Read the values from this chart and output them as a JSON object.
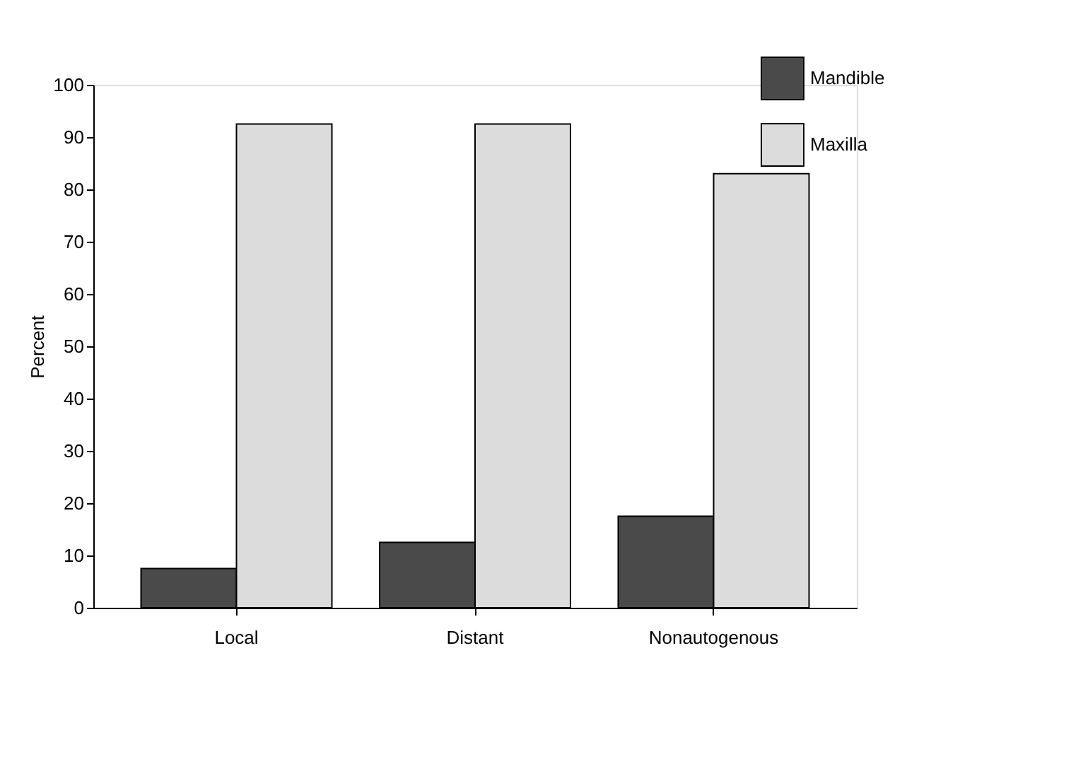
{
  "chart_data": {
    "type": "bar",
    "ylabel": "Percent",
    "categories": [
      "Local",
      "Distant",
      "Nonautogenous"
    ],
    "series": [
      {
        "name": "Mandible",
        "color": "#4a4a4a",
        "values": [
          7.5,
          12.5,
          17.5
        ]
      },
      {
        "name": "Maxilla",
        "color": "#dcdcdc",
        "values": [
          92.5,
          92.5,
          83
        ]
      }
    ],
    "ylim": [
      0,
      100
    ],
    "yticks": [
      0,
      10,
      20,
      30,
      40,
      50,
      60,
      70,
      80,
      90,
      100
    ],
    "grid": false,
    "legend": "top right"
  }
}
